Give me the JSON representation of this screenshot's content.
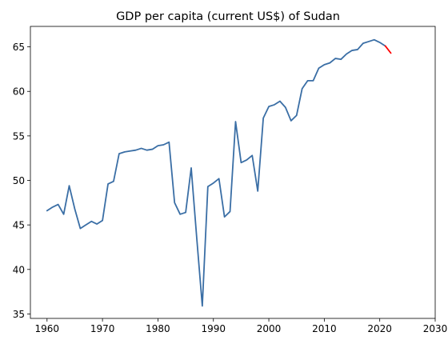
{
  "chart_data": {
    "type": "line",
    "title": "GDP per capita (current US$) of Sudan",
    "xlabel": "",
    "ylabel": "",
    "xlim": [
      1957,
      2030
    ],
    "ylim": [
      34.5,
      67.3
    ],
    "xticks": [
      1960,
      1970,
      1980,
      1990,
      2000,
      2010,
      2020,
      2030
    ],
    "yticks": [
      35,
      40,
      45,
      50,
      55,
      60,
      65
    ],
    "grid": false,
    "series": [
      {
        "color": "#3a6ea5",
        "points": [
          [
            1960,
            46.6
          ],
          [
            1961,
            47.0
          ],
          [
            1962,
            47.3
          ],
          [
            1963,
            46.2
          ],
          [
            1964,
            49.4
          ],
          [
            1965,
            46.8
          ],
          [
            1966,
            44.6
          ],
          [
            1967,
            45.0
          ],
          [
            1968,
            45.4
          ],
          [
            1969,
            45.1
          ],
          [
            1970,
            45.5
          ],
          [
            1971,
            49.6
          ],
          [
            1972,
            49.9
          ],
          [
            1973,
            53.0
          ],
          [
            1974,
            53.2
          ],
          [
            1975,
            53.3
          ],
          [
            1976,
            53.4
          ],
          [
            1977,
            53.6
          ],
          [
            1978,
            53.4
          ],
          [
            1979,
            53.5
          ],
          [
            1980,
            53.9
          ],
          [
            1981,
            54.0
          ],
          [
            1982,
            54.3
          ],
          [
            1983,
            47.5
          ],
          [
            1984,
            46.2
          ],
          [
            1985,
            46.4
          ],
          [
            1986,
            51.4
          ],
          [
            1987,
            43.5
          ],
          [
            1988,
            35.9
          ],
          [
            1989,
            49.3
          ],
          [
            1990,
            49.7
          ],
          [
            1991,
            50.2
          ],
          [
            1992,
            45.9
          ],
          [
            1993,
            46.5
          ],
          [
            1994,
            56.6
          ],
          [
            1995,
            52.0
          ],
          [
            1996,
            52.3
          ],
          [
            1997,
            52.8
          ],
          [
            1998,
            48.8
          ],
          [
            1999,
            57.0
          ],
          [
            2000,
            58.3
          ],
          [
            2001,
            58.5
          ],
          [
            2002,
            58.9
          ],
          [
            2003,
            58.2
          ],
          [
            2004,
            56.7
          ],
          [
            2005,
            57.3
          ],
          [
            2006,
            60.3
          ],
          [
            2007,
            61.2
          ],
          [
            2008,
            61.2
          ],
          [
            2009,
            62.6
          ],
          [
            2010,
            63.0
          ],
          [
            2011,
            63.2
          ],
          [
            2012,
            63.7
          ],
          [
            2013,
            63.6
          ],
          [
            2014,
            64.2
          ],
          [
            2015,
            64.6
          ],
          [
            2016,
            64.7
          ],
          [
            2017,
            65.4
          ],
          [
            2018,
            65.6
          ],
          [
            2019,
            65.8
          ],
          [
            2020,
            65.5
          ],
          [
            2021,
            65.1
          ]
        ]
      },
      {
        "color": "#ff0000",
        "points": [
          [
            2021,
            65.1
          ],
          [
            2022,
            64.3
          ]
        ]
      }
    ]
  }
}
